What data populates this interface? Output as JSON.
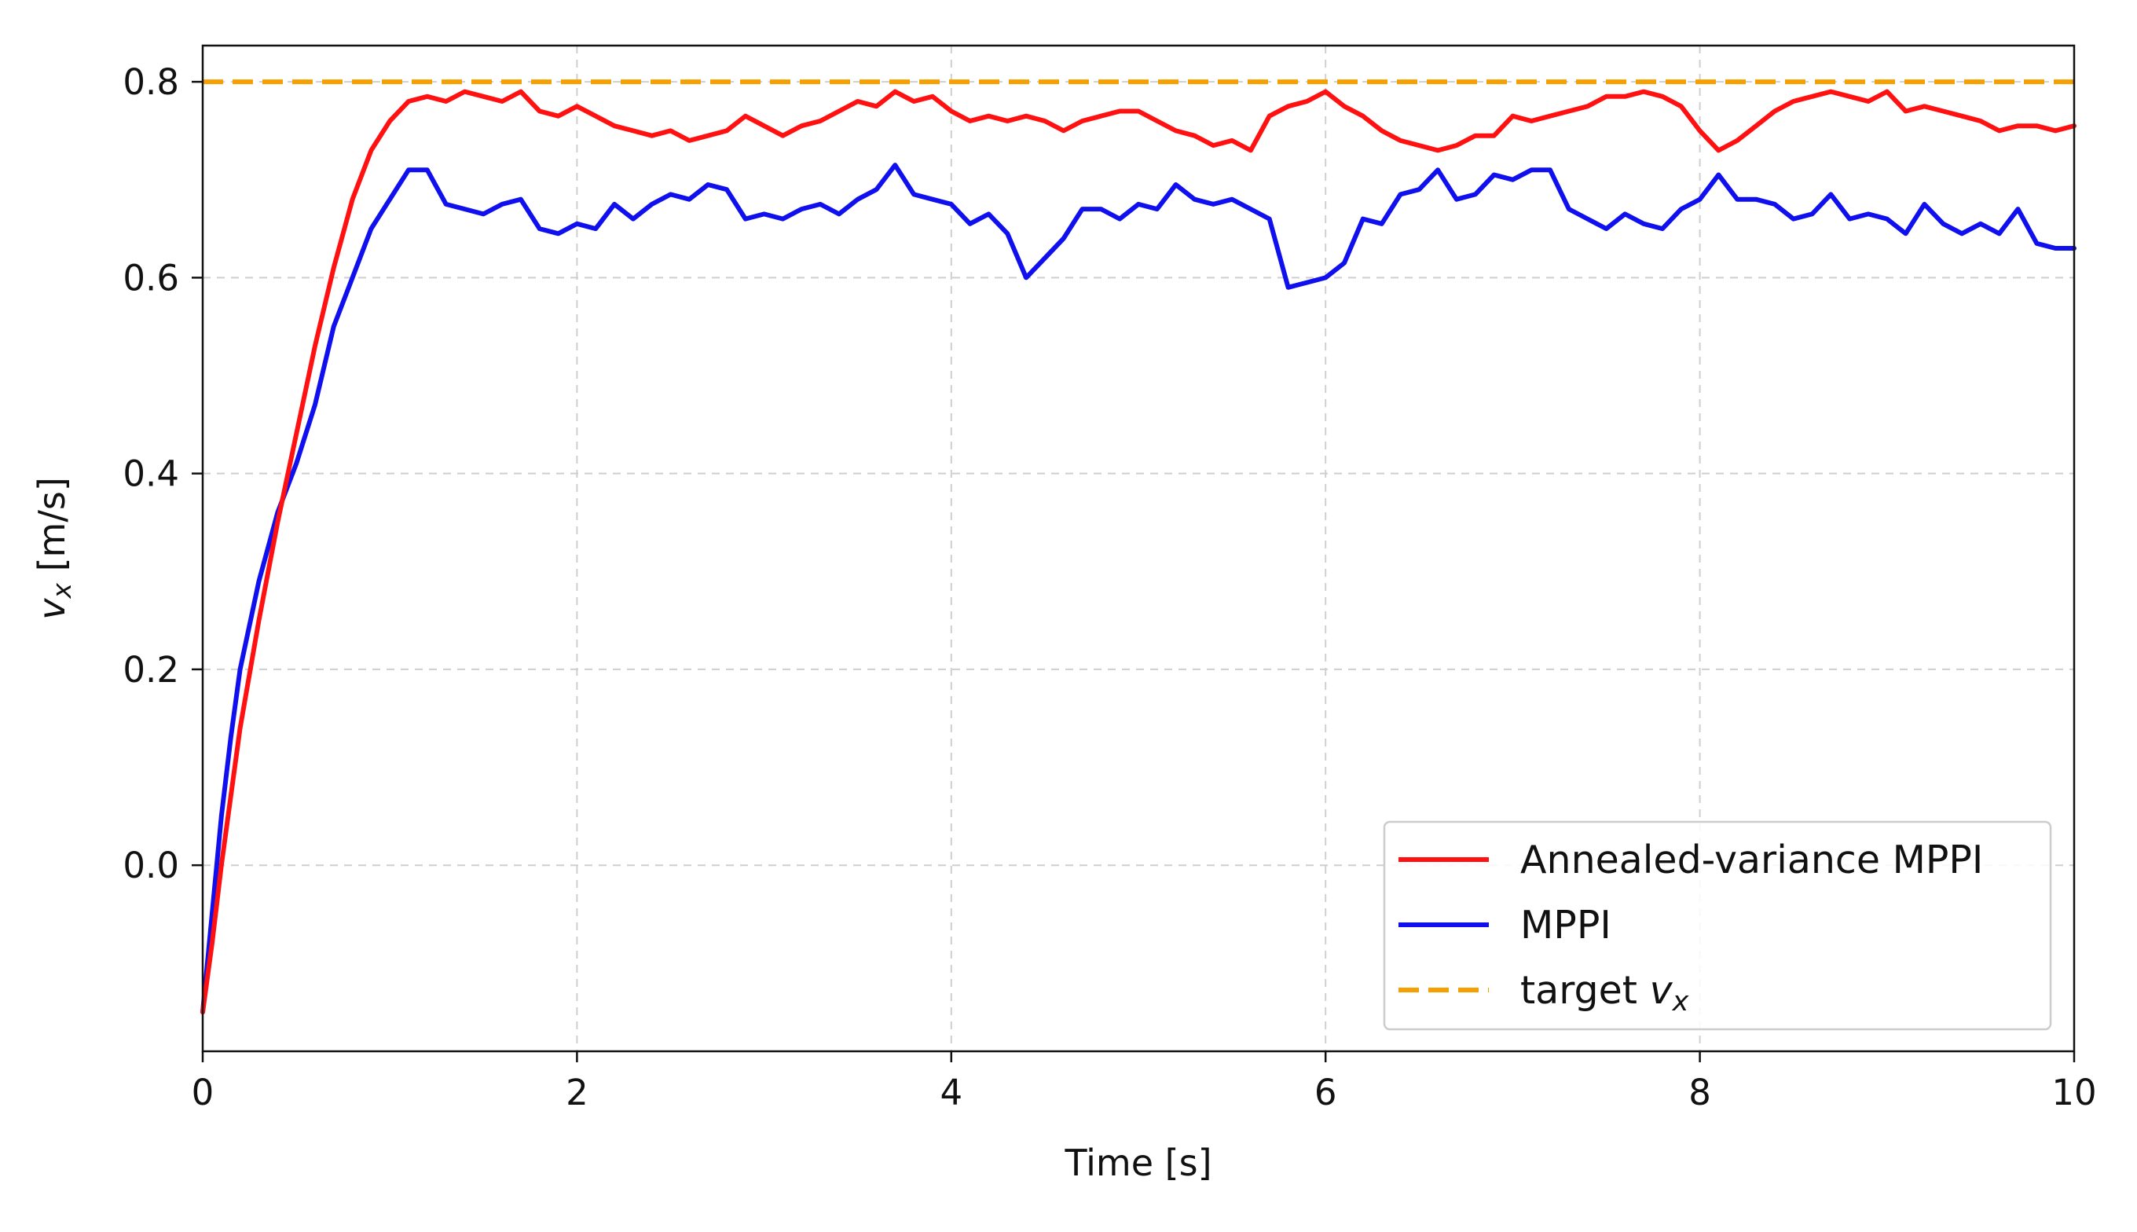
{
  "chart_data": {
    "type": "line",
    "title": "",
    "xlabel": "Time [s]",
    "ylabel": {
      "var": "v",
      "sub": "x",
      "unit": " [m/s]"
    },
    "xlim": [
      0,
      10
    ],
    "ylim": [
      -0.19,
      0.837
    ],
    "xticks": [
      0,
      2,
      4,
      6,
      8,
      10
    ],
    "yticks": [
      0.0,
      0.2,
      0.4,
      0.6,
      0.8
    ],
    "xtick_labels": [
      "0",
      "2",
      "4",
      "6",
      "8",
      "10"
    ],
    "ytick_labels": [
      "0.0",
      "0.2",
      "0.4",
      "0.6",
      "0.8"
    ],
    "grid": true,
    "legend_position": "lower-right",
    "series": [
      {
        "name": "Annealed-variance MPPI",
        "color": "#ff1111",
        "style": "solid",
        "x": [
          0,
          0.05,
          0.1,
          0.15,
          0.2,
          0.3,
          0.4,
          0.5,
          0.6,
          0.7,
          0.8,
          0.9,
          1.0,
          1.1,
          1.2,
          1.3,
          1.4,
          1.5,
          1.6,
          1.7,
          1.8,
          1.9,
          2.0,
          2.1,
          2.2,
          2.3,
          2.4,
          2.5,
          2.6,
          2.7,
          2.8,
          2.9,
          3.0,
          3.1,
          3.2,
          3.3,
          3.4,
          3.5,
          3.6,
          3.7,
          3.8,
          3.9,
          4.0,
          4.1,
          4.2,
          4.3,
          4.4,
          4.5,
          4.6,
          4.7,
          4.8,
          4.9,
          5.0,
          5.1,
          5.2,
          5.3,
          5.4,
          5.5,
          5.6,
          5.7,
          5.8,
          5.9,
          6.0,
          6.1,
          6.2,
          6.3,
          6.4,
          6.5,
          6.6,
          6.7,
          6.8,
          6.9,
          7.0,
          7.1,
          7.2,
          7.3,
          7.4,
          7.5,
          7.6,
          7.7,
          7.8,
          7.9,
          8.0,
          8.1,
          8.2,
          8.3,
          8.4,
          8.5,
          8.6,
          8.7,
          8.8,
          8.9,
          9.0,
          9.1,
          9.2,
          9.3,
          9.4,
          9.5,
          9.6,
          9.7,
          9.8,
          9.9,
          10.0
        ],
        "y": [
          -0.15,
          -0.08,
          0.0,
          0.07,
          0.14,
          0.25,
          0.35,
          0.44,
          0.53,
          0.61,
          0.68,
          0.73,
          0.76,
          0.78,
          0.785,
          0.78,
          0.79,
          0.785,
          0.78,
          0.79,
          0.77,
          0.765,
          0.775,
          0.765,
          0.755,
          0.75,
          0.745,
          0.75,
          0.74,
          0.745,
          0.75,
          0.765,
          0.755,
          0.745,
          0.755,
          0.76,
          0.77,
          0.78,
          0.775,
          0.79,
          0.78,
          0.785,
          0.77,
          0.76,
          0.765,
          0.76,
          0.765,
          0.76,
          0.75,
          0.76,
          0.765,
          0.77,
          0.77,
          0.76,
          0.75,
          0.745,
          0.735,
          0.74,
          0.73,
          0.765,
          0.775,
          0.78,
          0.79,
          0.775,
          0.765,
          0.75,
          0.74,
          0.735,
          0.73,
          0.735,
          0.745,
          0.745,
          0.765,
          0.76,
          0.765,
          0.77,
          0.775,
          0.785,
          0.785,
          0.79,
          0.785,
          0.775,
          0.75,
          0.73,
          0.74,
          0.755,
          0.77,
          0.78,
          0.785,
          0.79,
          0.785,
          0.78,
          0.79,
          0.77,
          0.775,
          0.77,
          0.765,
          0.76,
          0.75,
          0.755,
          0.755,
          0.75,
          0.755
        ]
      },
      {
        "name": "MPPI",
        "color": "#1010ee",
        "style": "solid",
        "x": [
          0,
          0.05,
          0.1,
          0.15,
          0.2,
          0.3,
          0.4,
          0.5,
          0.6,
          0.7,
          0.8,
          0.9,
          1.0,
          1.1,
          1.2,
          1.3,
          1.4,
          1.5,
          1.6,
          1.7,
          1.8,
          1.9,
          2.0,
          2.1,
          2.2,
          2.3,
          2.4,
          2.5,
          2.6,
          2.7,
          2.8,
          2.9,
          3.0,
          3.1,
          3.2,
          3.3,
          3.4,
          3.5,
          3.6,
          3.7,
          3.8,
          3.9,
          4.0,
          4.1,
          4.2,
          4.3,
          4.4,
          4.5,
          4.6,
          4.7,
          4.8,
          4.9,
          5.0,
          5.1,
          5.2,
          5.3,
          5.4,
          5.5,
          5.6,
          5.7,
          5.8,
          5.9,
          6.0,
          6.1,
          6.2,
          6.3,
          6.4,
          6.5,
          6.6,
          6.7,
          6.8,
          6.9,
          7.0,
          7.1,
          7.2,
          7.3,
          7.4,
          7.5,
          7.6,
          7.7,
          7.8,
          7.9,
          8.0,
          8.1,
          8.2,
          8.3,
          8.4,
          8.5,
          8.6,
          8.7,
          8.8,
          8.9,
          9.0,
          9.1,
          9.2,
          9.3,
          9.4,
          9.5,
          9.6,
          9.7,
          9.8,
          9.9,
          10.0
        ],
        "y": [
          -0.15,
          -0.05,
          0.05,
          0.13,
          0.2,
          0.29,
          0.36,
          0.41,
          0.47,
          0.55,
          0.6,
          0.65,
          0.68,
          0.71,
          0.71,
          0.675,
          0.67,
          0.665,
          0.675,
          0.68,
          0.65,
          0.645,
          0.655,
          0.65,
          0.675,
          0.66,
          0.675,
          0.685,
          0.68,
          0.695,
          0.69,
          0.66,
          0.665,
          0.66,
          0.67,
          0.675,
          0.665,
          0.68,
          0.69,
          0.715,
          0.685,
          0.68,
          0.675,
          0.655,
          0.665,
          0.645,
          0.6,
          0.62,
          0.64,
          0.67,
          0.67,
          0.66,
          0.675,
          0.67,
          0.695,
          0.68,
          0.675,
          0.68,
          0.67,
          0.66,
          0.59,
          0.595,
          0.6,
          0.615,
          0.66,
          0.655,
          0.685,
          0.69,
          0.71,
          0.68,
          0.685,
          0.705,
          0.7,
          0.71,
          0.71,
          0.67,
          0.66,
          0.65,
          0.665,
          0.655,
          0.65,
          0.67,
          0.68,
          0.705,
          0.68,
          0.68,
          0.675,
          0.66,
          0.665,
          0.685,
          0.66,
          0.665,
          0.66,
          0.645,
          0.675,
          0.655,
          0.645,
          0.655,
          0.645,
          0.67,
          0.635,
          0.63,
          0.63
        ]
      },
      {
        "name": "target",
        "name_var": "v",
        "name_sub": "x",
        "color": "#f5a000",
        "style": "dashed",
        "x": [
          0,
          10
        ],
        "y": [
          0.8,
          0.8
        ]
      }
    ]
  }
}
